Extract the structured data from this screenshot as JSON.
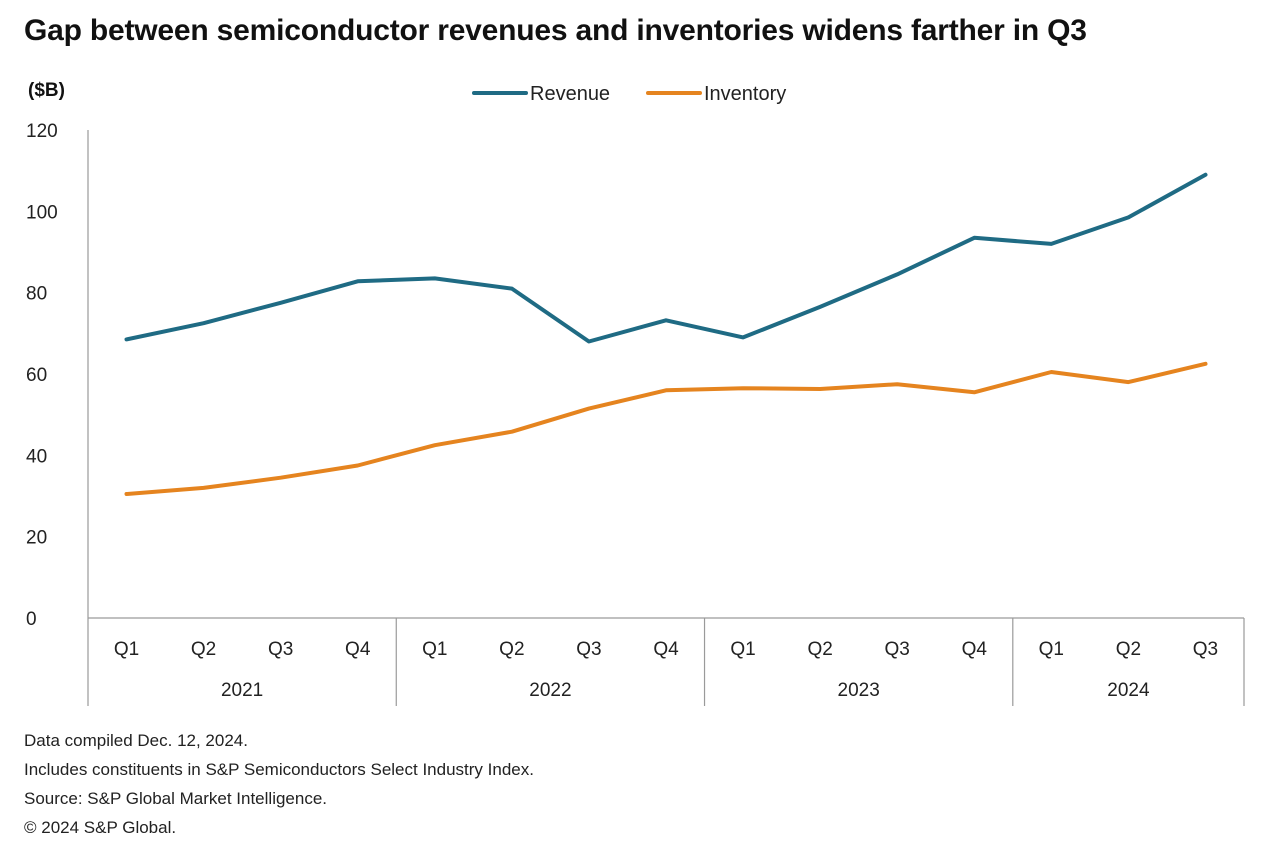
{
  "chart_data": {
    "type": "line",
    "title": "Gap between semiconductor revenues and inventories widens farther in Q3",
    "ylabel": "($B)",
    "ylim": [
      0,
      120
    ],
    "yticks": [
      0,
      20,
      40,
      60,
      80,
      100,
      120
    ],
    "quarters": [
      "Q1",
      "Q2",
      "Q3",
      "Q4",
      "Q1",
      "Q2",
      "Q3",
      "Q4",
      "Q1",
      "Q2",
      "Q3",
      "Q4",
      "Q1",
      "Q2",
      "Q3"
    ],
    "years": [
      {
        "label": "2021",
        "quarters": 4
      },
      {
        "label": "2022",
        "quarters": 4
      },
      {
        "label": "2023",
        "quarters": 4
      },
      {
        "label": "2024",
        "quarters": 3
      }
    ],
    "series": [
      {
        "name": "Revenue",
        "color": "#1f6b84",
        "values": [
          68.5,
          72.5,
          77.5,
          82.8,
          83.5,
          81.0,
          68.0,
          73.2,
          69.0,
          76.5,
          84.5,
          93.5,
          92.0,
          98.5,
          109.0
        ]
      },
      {
        "name": "Inventory",
        "color": "#e5841f",
        "values": [
          30.5,
          32.0,
          34.5,
          37.5,
          42.5,
          45.8,
          51.5,
          56.0,
          56.5,
          56.3,
          57.5,
          55.5,
          60.5,
          58.0,
          62.5
        ]
      }
    ],
    "legend_position": "top-center",
    "grid": false
  },
  "notes": [
    "Data compiled Dec. 12, 2024.",
    "Includes constituents in S&P Semiconductors Select Industry Index.",
    "Source: S&P Global Market Intelligence.",
    "© 2024 S&P Global."
  ]
}
